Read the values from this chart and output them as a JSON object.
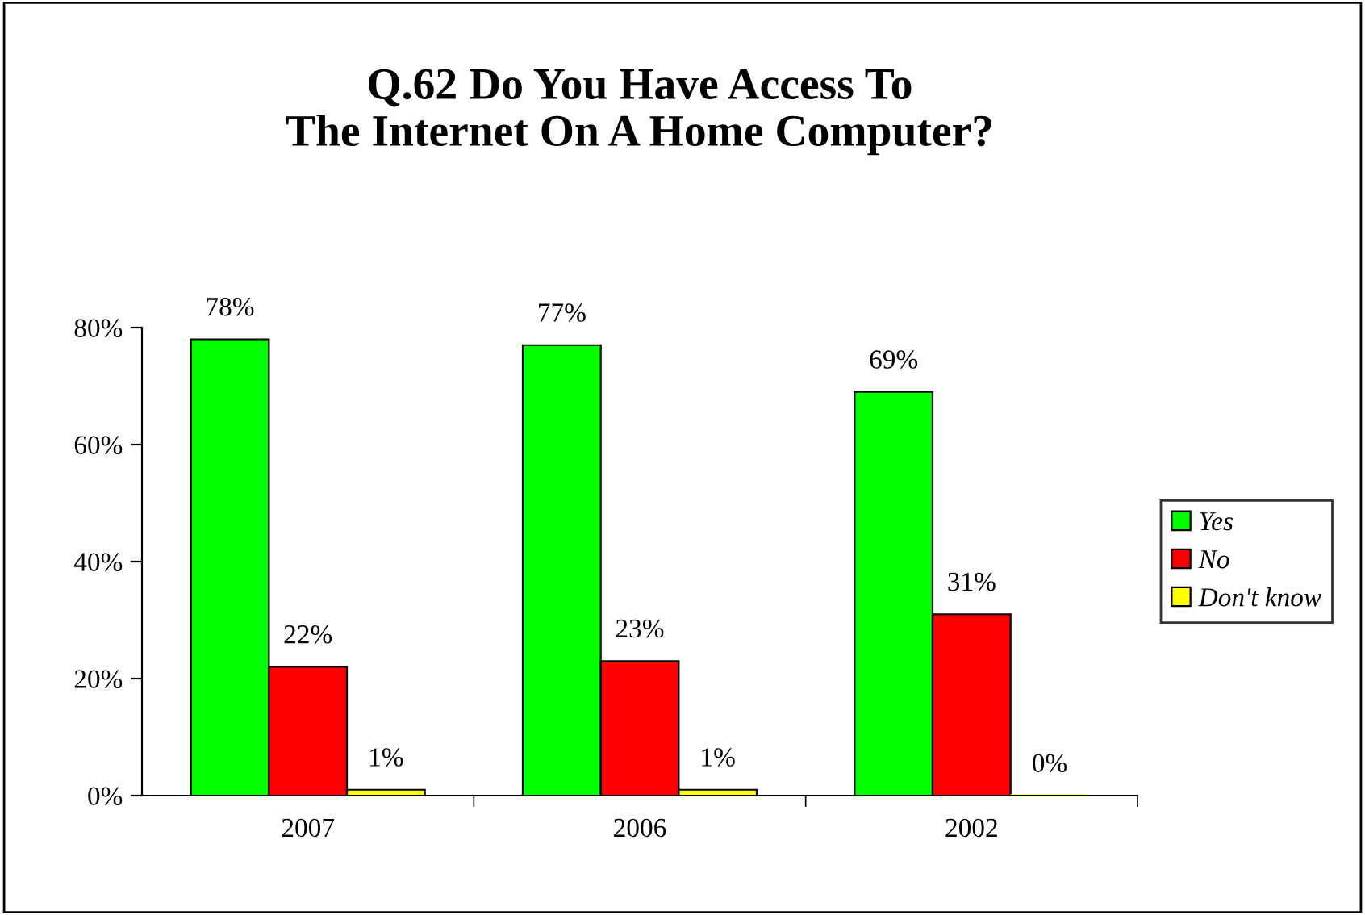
{
  "chart_data": {
    "type": "bar",
    "title": "Q.62 Do You Have Access To\nThe Internet On A Home Computer?",
    "categories": [
      "2007",
      "2006",
      "2002"
    ],
    "series": [
      {
        "name": "Yes",
        "color": "#00ff00",
        "values": [
          78,
          77,
          69
        ],
        "value_labels": [
          "78%",
          "77%",
          "69%"
        ]
      },
      {
        "name": "No",
        "color": "#ff0000",
        "values": [
          22,
          23,
          31
        ],
        "value_labels": [
          "22%",
          "23%",
          "31%"
        ]
      },
      {
        "name": "Don't know",
        "color": "#ffff00",
        "values": [
          1,
          1,
          0
        ],
        "value_labels": [
          "1%",
          "1%",
          "0%"
        ]
      }
    ],
    "ylim": [
      0,
      80
    ],
    "yticks": [
      {
        "value": 0,
        "label": "0%"
      },
      {
        "value": 20,
        "label": "20%"
      },
      {
        "value": 40,
        "label": "40%"
      },
      {
        "value": 60,
        "label": "60%"
      },
      {
        "value": 80,
        "label": "80%"
      }
    ],
    "grid": false,
    "legend": "right"
  }
}
